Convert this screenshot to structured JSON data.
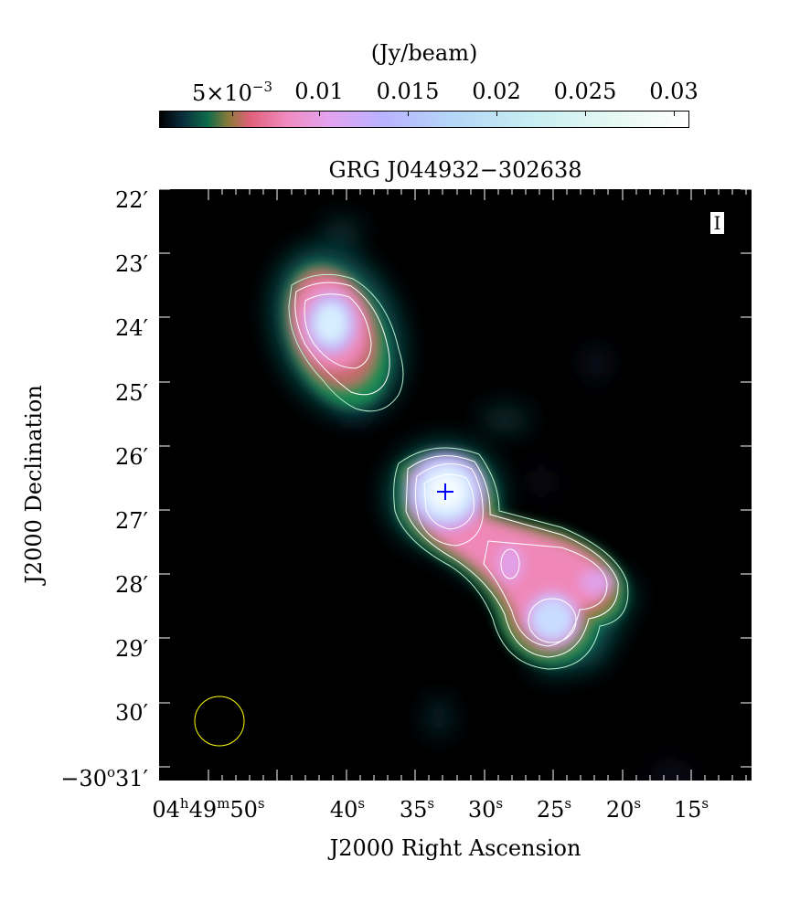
{
  "colorbar": {
    "unit_label": "(Jy/beam)",
    "ticks": [
      {
        "mantissa": "5×10",
        "exponent": "−3",
        "value": 0.005
      },
      {
        "text": "0.01",
        "value": 0.01
      },
      {
        "text": "0.015",
        "value": 0.015
      },
      {
        "text": "0.02",
        "value": 0.02
      },
      {
        "text": "0.025",
        "value": 0.025
      },
      {
        "text": "0.03",
        "value": 0.03
      }
    ],
    "colors": [
      "#000000",
      "#0d6b4a",
      "#e0607a",
      "#e3a3f0",
      "#b4d6f8",
      "#ffffff"
    ]
  },
  "map": {
    "title": "GRG J044932−302638",
    "stokes_label": "I",
    "xlabel": "J2000 Right Ascension",
    "ylabel": "J2000 Declination",
    "dec_ticks": [
      "22′",
      "23′",
      "24′",
      "25′",
      "26′",
      "27′",
      "28′",
      "29′",
      "30′"
    ],
    "dec_ticks_values_arcmin": [
      22,
      23,
      24,
      25,
      26,
      27,
      28,
      29,
      30
    ],
    "dec_first_label": {
      "text": "−30",
      "deg": "o",
      "arcmin": "31′"
    },
    "ra_first_label": {
      "h": "04",
      "m": "49",
      "s": "50"
    },
    "ra_ticks_seconds": [
      "40",
      "35",
      "30",
      "25",
      "20",
      "15"
    ],
    "ra_ticks_values_s": [
      40,
      35,
      30,
      25,
      20,
      15
    ],
    "ra_unit_h": "h",
    "ra_unit_m": "m",
    "ra_unit_s": "s",
    "marker_color": "#0000ff",
    "beam_color": "#ffff00",
    "contour_color": "#ffffff"
  }
}
